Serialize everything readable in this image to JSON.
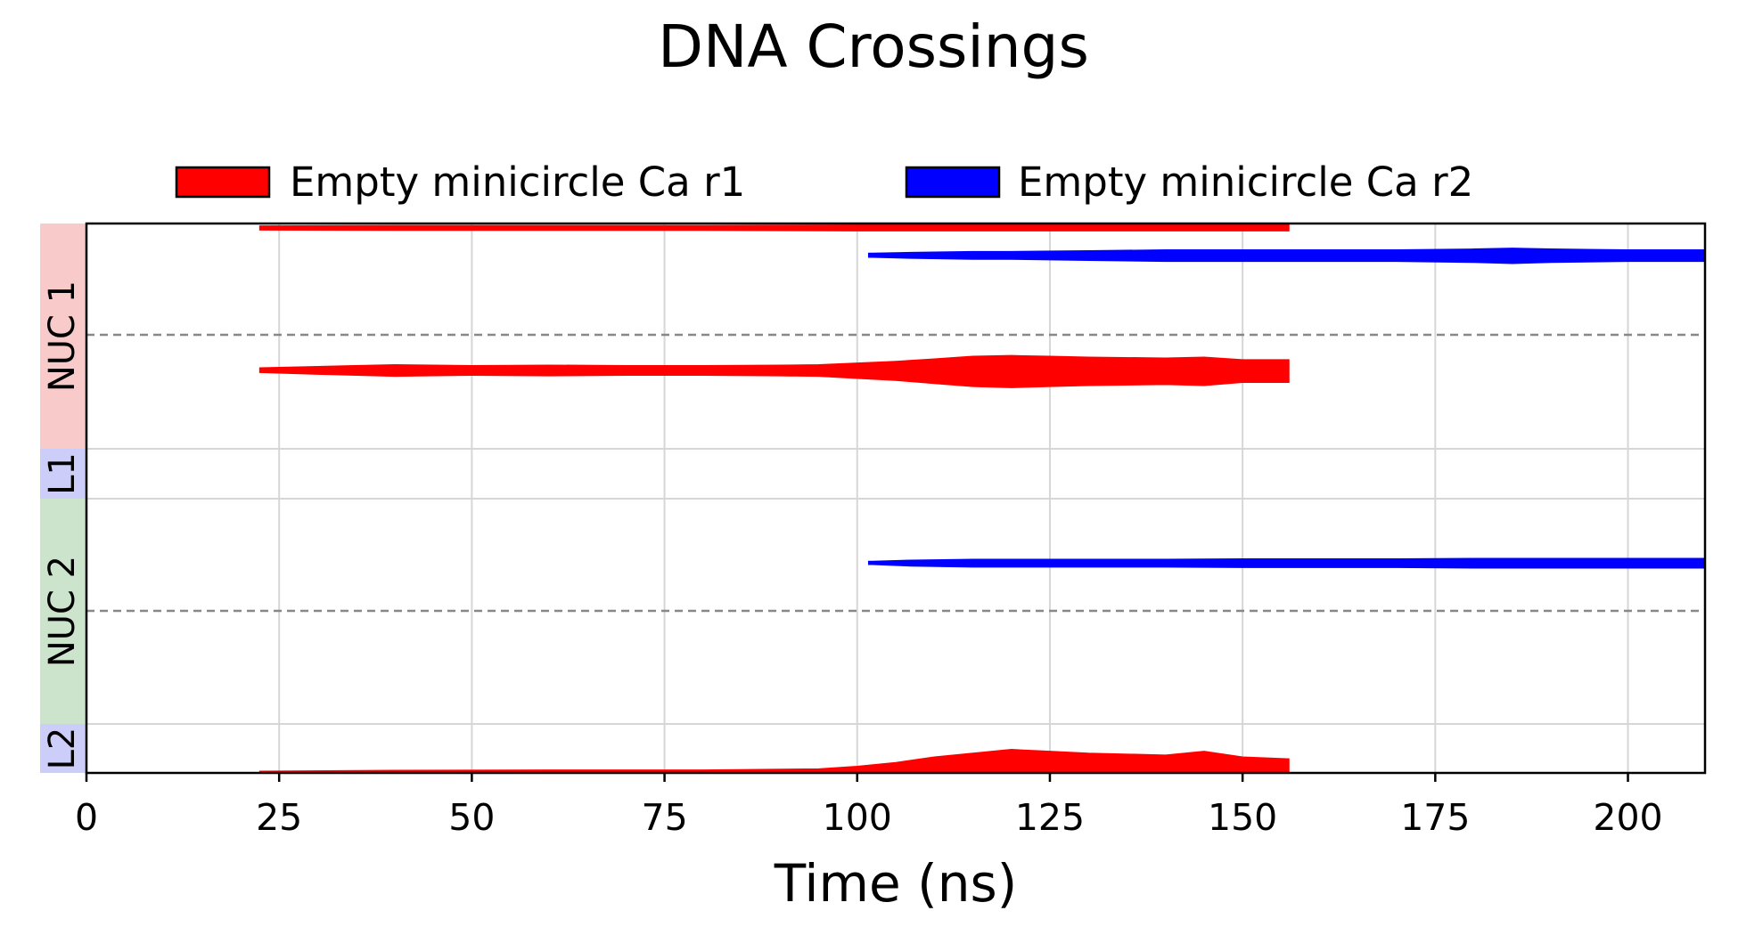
{
  "chart_data": {
    "type": "area",
    "title": "DNA Crossings",
    "xlabel": "Time (ns)",
    "ylabel": "",
    "xlim": [
      0,
      210
    ],
    "xticks": [
      0,
      25,
      50,
      75,
      100,
      125,
      150,
      175,
      200
    ],
    "grid": true,
    "legend": {
      "placement": "top-center",
      "columns": 2
    },
    "regions": [
      {
        "label": "NUC 1",
        "color": "#f8caca"
      },
      {
        "label": "L1",
        "color": "#cccdf8"
      },
      {
        "label": "NUC 2",
        "color": "#cce4cc"
      },
      {
        "label": "L2",
        "color": "#cccdf8"
      }
    ],
    "series": [
      {
        "name": "Empty minicircle Ca r1",
        "color": "#ff0000",
        "bands": [
          {
            "region": "NUC 1",
            "track": "upper",
            "x": [
              22.5,
              40,
              60,
              80,
              100,
              120,
              140,
              156
            ],
            "width": [
              1.0,
              1.2,
              1.2,
              1.2,
              1.5,
              1.5,
              1.5,
              1.5
            ]
          },
          {
            "region": "NUC 1",
            "track": "lower",
            "x": [
              22.5,
              30,
              40,
              50,
              60,
              70,
              80,
              90,
              95,
              100,
              105,
              110,
              115,
              120,
              125,
              130,
              140,
              145,
              150,
              156
            ],
            "width": [
              1.2,
              2.0,
              3.0,
              2.5,
              2.8,
              2.5,
              2.5,
              2.8,
              3.0,
              4.0,
              5.0,
              6.5,
              8.0,
              8.5,
              8.0,
              7.5,
              7.0,
              7.5,
              6.0,
              6.0
            ]
          },
          {
            "region": "L2",
            "track": "bottom",
            "x": [
              22.5,
              40,
              60,
              80,
              95,
              100,
              105,
              110,
              115,
              120,
              125,
              130,
              140,
              145,
              150,
              156
            ],
            "width": [
              0.2,
              0.4,
              0.5,
              0.5,
              0.8,
              1.5,
              2.5,
              4.0,
              5.0,
              6.0,
              5.5,
              5.0,
              4.5,
              5.5,
              4.0,
              3.5
            ]
          }
        ]
      },
      {
        "name": "Empty minicircle Ca r2",
        "color": "#0000ff",
        "bands": [
          {
            "region": "NUC 1",
            "track": "upper",
            "x": [
              101.5,
              102,
              107,
              115,
              120,
              130,
              140,
              150,
              160,
              170,
              180,
              185,
              190,
              200,
              210
            ],
            "width": [
              1.0,
              1.0,
              1.5,
              2.0,
              2.0,
              2.5,
              3.0,
              3.0,
              3.0,
              3.0,
              3.5,
              4.0,
              3.5,
              3.0,
              3.0
            ]
          },
          {
            "region": "NUC 2",
            "track": "upper",
            "x": [
              101.5,
              102,
              107,
              115,
              120,
              130,
              140,
              150,
              160,
              170,
              180,
              185,
              190,
              200,
              210
            ],
            "width": [
              0.8,
              0.8,
              1.5,
              2.0,
              2.0,
              2.0,
              2.0,
              2.2,
              2.2,
              2.2,
              2.5,
              2.5,
              2.5,
              2.5,
              2.5
            ]
          }
        ]
      }
    ]
  }
}
